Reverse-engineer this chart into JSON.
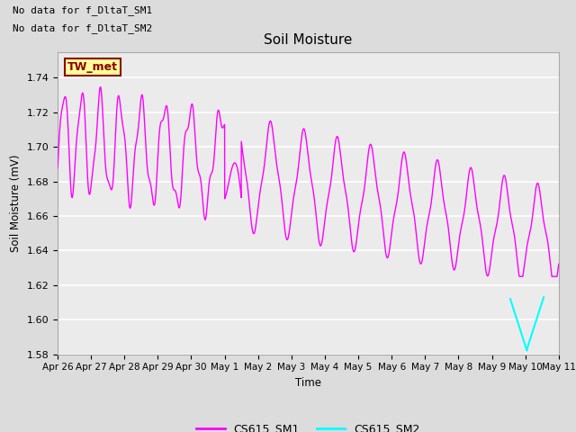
{
  "title": "Soil Moisture",
  "ylabel": "Soil Moisture (mV)",
  "xlabel": "Time",
  "ylim": [
    1.58,
    1.755
  ],
  "yticks": [
    1.58,
    1.6,
    1.62,
    1.64,
    1.66,
    1.68,
    1.7,
    1.72,
    1.74
  ],
  "xtick_labels": [
    "Apr 26",
    "Apr 27",
    "Apr 28",
    "Apr 29",
    "Apr 30",
    "May 1",
    "May 2",
    "May 3",
    "May 4",
    "May 5",
    "May 6",
    "May 7",
    "May 8",
    "May 9",
    "May 10",
    "May 11"
  ],
  "no_data_text_1": "No data for f_DltaT_SM1",
  "no_data_text_2": "No data for f_DltaT_SM2",
  "legend_label1": "CS615_SM1",
  "legend_label2": "CS615_SM2",
  "color_sm1": "#FF00FF",
  "color_sm2": "#00FFFF",
  "tw_met_bg": "#FFFF99",
  "tw_met_border": "#8B0000",
  "fig_facecolor": "#DCDCDC",
  "ax_facecolor": "#EBEBEB"
}
